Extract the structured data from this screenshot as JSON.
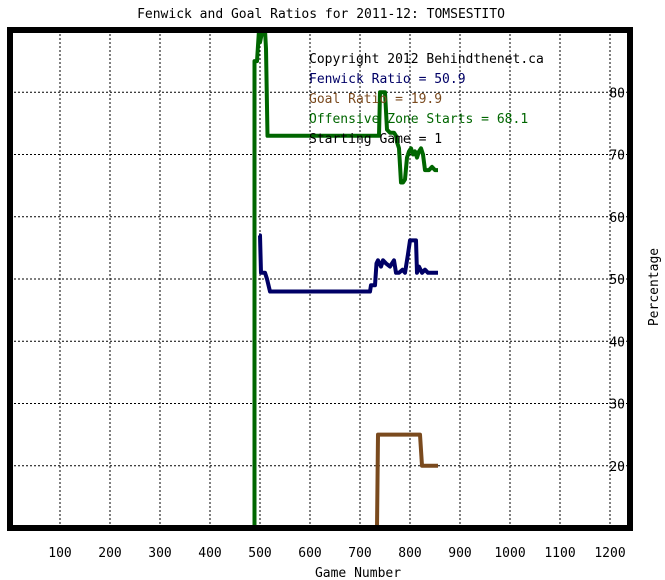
{
  "title": "Fenwick and Goal Ratios for 2011-12: TOMSESTITO",
  "chart_data": {
    "type": "line",
    "xlabel": "Game Number",
    "ylabel": "Percentage",
    "xlim": [
      0,
      1240
    ],
    "ylim": [
      10,
      90
    ],
    "xticks": [
      100,
      200,
      300,
      400,
      500,
      600,
      700,
      800,
      900,
      1000,
      1100,
      1200
    ],
    "yticks": [
      20,
      30,
      40,
      50,
      60,
      70,
      80
    ],
    "grid": true,
    "annotations": [
      {
        "text": "Copyright 2012 Behindthenet.ca",
        "color": "#000000"
      },
      {
        "text": "Fenwick Ratio = 50.9",
        "color": "#000066"
      },
      {
        "text": "Goal Ratio = 19.9",
        "color": "#7a4a1e"
      },
      {
        "text": "Offensive Zone Starts = 68.1",
        "color": "#006600"
      },
      {
        "text": "Starting Game = 1",
        "color": "#000000"
      }
    ],
    "series": [
      {
        "name": "Fenwick Ratio",
        "color": "#000066",
        "points": [
          [
            498,
            57
          ],
          [
            500,
            57
          ],
          [
            502,
            51
          ],
          [
            510,
            51
          ],
          [
            514,
            50
          ],
          [
            520,
            48
          ],
          [
            530,
            48
          ],
          [
            560,
            48
          ],
          [
            600,
            48
          ],
          [
            650,
            48
          ],
          [
            700,
            48
          ],
          [
            720,
            48
          ],
          [
            722,
            49
          ],
          [
            730,
            49
          ],
          [
            733,
            52.5
          ],
          [
            736,
            53
          ],
          [
            742,
            52
          ],
          [
            746,
            53
          ],
          [
            752,
            52.5
          ],
          [
            760,
            52
          ],
          [
            768,
            53
          ],
          [
            772,
            51
          ],
          [
            778,
            51
          ],
          [
            785,
            51.5
          ],
          [
            790,
            51
          ],
          [
            796,
            54
          ],
          [
            800,
            56.2
          ],
          [
            812,
            56.2
          ],
          [
            814,
            51
          ],
          [
            818,
            52
          ],
          [
            824,
            51
          ],
          [
            830,
            51.5
          ],
          [
            836,
            51
          ],
          [
            850,
            51
          ],
          [
            856,
            51
          ]
        ]
      },
      {
        "name": "Goal Ratio",
        "color": "#7a4a1e",
        "points": [
          [
            734,
            10
          ],
          [
            736,
            25
          ],
          [
            760,
            25
          ],
          [
            790,
            25
          ],
          [
            820,
            25
          ],
          [
            824,
            20
          ],
          [
            830,
            20
          ],
          [
            850,
            20
          ],
          [
            856,
            20
          ]
        ]
      },
      {
        "name": "Offensive Zone Starts",
        "color": "#006600",
        "points": [
          [
            489,
            10
          ],
          [
            489,
            85
          ],
          [
            494,
            85
          ],
          [
            498,
            90
          ],
          [
            500,
            88
          ],
          [
            505,
            90
          ],
          [
            510,
            90
          ],
          [
            512,
            87
          ],
          [
            515,
            73
          ],
          [
            530,
            73
          ],
          [
            580,
            73
          ],
          [
            620,
            73
          ],
          [
            700,
            73
          ],
          [
            738,
            73
          ],
          [
            740,
            80
          ],
          [
            750,
            80
          ],
          [
            754,
            74
          ],
          [
            760,
            73.5
          ],
          [
            768,
            73.5
          ],
          [
            772,
            73
          ],
          [
            774,
            72
          ],
          [
            778,
            71
          ],
          [
            782,
            65.5
          ],
          [
            786,
            65.5
          ],
          [
            790,
            66
          ],
          [
            794,
            69.5
          ],
          [
            798,
            70.5
          ],
          [
            802,
            71
          ],
          [
            806,
            70
          ],
          [
            810,
            70.5
          ],
          [
            814,
            69.5
          ],
          [
            818,
            70.5
          ],
          [
            822,
            71
          ],
          [
            826,
            70
          ],
          [
            830,
            67.5
          ],
          [
            838,
            67.5
          ],
          [
            844,
            68
          ],
          [
            850,
            67.5
          ],
          [
            856,
            67.5
          ]
        ]
      }
    ]
  }
}
